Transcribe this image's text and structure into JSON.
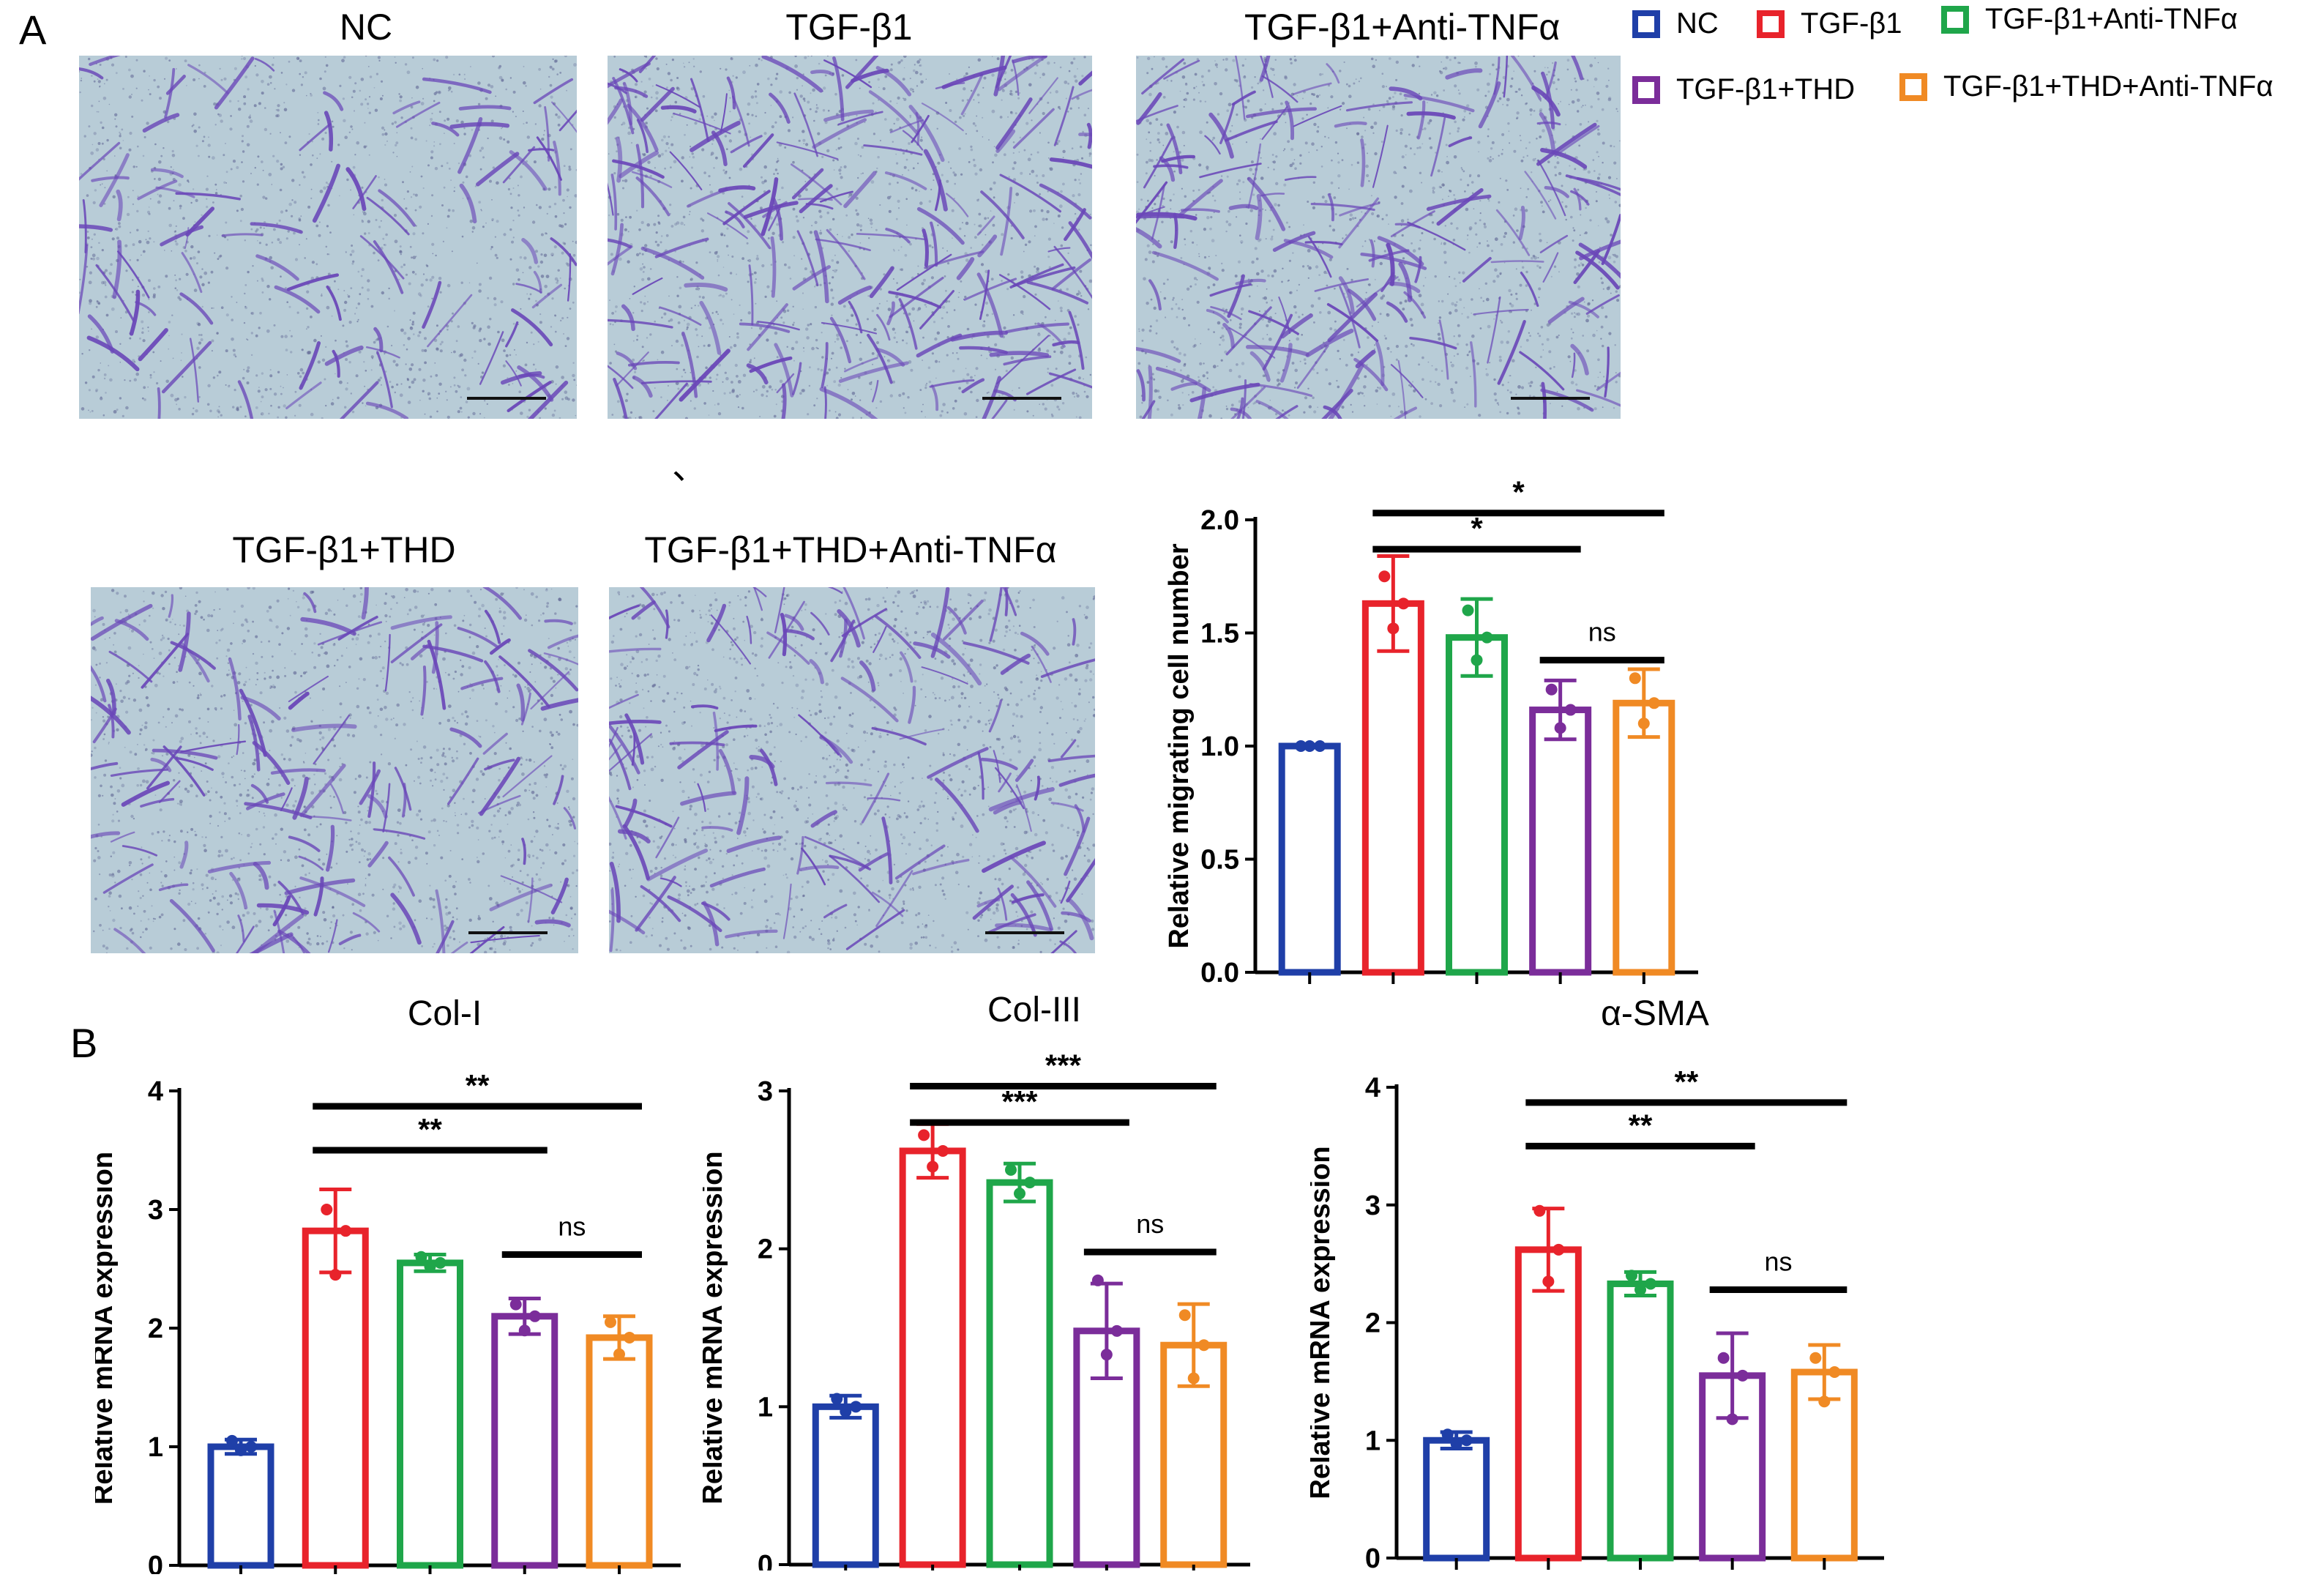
{
  "panel_labels": {
    "a": "A",
    "b": "B"
  },
  "stray_mark": "、",
  "images": [
    {
      "title": "NC",
      "density": 0.8,
      "seed": 11
    },
    {
      "title": "TGF-β1",
      "density": 1.6,
      "seed": 23
    },
    {
      "title": "TGF-β1+Anti-TNFα",
      "density": 1.45,
      "seed": 37
    },
    {
      "title": "TGF-β1+THD",
      "density": 1.1,
      "seed": 41
    },
    {
      "title": "TGF-β1+THD+Anti-TNFα",
      "density": 1.2,
      "seed": 53
    }
  ],
  "legend": [
    {
      "label": "NC",
      "color": "#1f3fa8"
    },
    {
      "label": "TGF-β1",
      "color": "#e8232b"
    },
    {
      "label": "TGF-β1+Anti-TNFα",
      "color": "#1fa64a"
    },
    {
      "label": "TGF-β1+THD",
      "color": "#7b2d9a"
    },
    {
      "label": "TGF-β1+THD+Anti-TNFα",
      "color": "#f08a24"
    }
  ],
  "chart_data": [
    {
      "id": "migration",
      "type": "bar",
      "title": "",
      "ylabel": "Relative migrating cell number",
      "ylim": [
        0,
        2.0
      ],
      "yticks": [
        "0.0",
        "0.5",
        "1.0",
        "1.5",
        "2.0"
      ],
      "categories": [
        "NC",
        "TGF-β1",
        "TGF-β1+Anti-TNFα",
        "TGF-β1+THD",
        "TGF-β1+THD+Anti-TNFα"
      ],
      "values": [
        1.0,
        1.63,
        1.48,
        1.16,
        1.19
      ],
      "errors": [
        0.0,
        0.21,
        0.17,
        0.13,
        0.15
      ],
      "points": [
        [
          1.0,
          1.0,
          1.0
        ],
        [
          1.75,
          1.63,
          1.52
        ],
        [
          1.6,
          1.48,
          1.38
        ],
        [
          1.25,
          1.16,
          1.08
        ],
        [
          1.3,
          1.19,
          1.1
        ]
      ],
      "significance": [
        {
          "from": 1,
          "to": 3,
          "label": "*",
          "y": 1.87
        },
        {
          "from": 1,
          "to": 4,
          "label": "*",
          "y": 2.03
        },
        {
          "from": 3,
          "to": 4,
          "label": "ns",
          "y": 1.38
        }
      ]
    },
    {
      "id": "col1",
      "type": "bar",
      "title": "Col-I",
      "ylabel": "Relative mRNA expression",
      "ylim": [
        0,
        4
      ],
      "yticks": [
        "0",
        "1",
        "2",
        "3",
        "4"
      ],
      "categories": [
        "NC",
        "TGF-β1",
        "TGF-β1+Anti-TNFα",
        "TGF-β1+THD",
        "TGF-β1+THD+Anti-TNFα"
      ],
      "values": [
        1.0,
        2.82,
        2.55,
        2.1,
        1.92
      ],
      "errors": [
        0.06,
        0.35,
        0.07,
        0.15,
        0.18
      ],
      "points": [
        [
          1.05,
          1.0,
          0.97
        ],
        [
          3.0,
          2.82,
          2.45
        ],
        [
          2.6,
          2.55,
          2.52
        ],
        [
          2.2,
          2.1,
          1.98
        ],
        [
          2.05,
          1.92,
          1.78
        ]
      ],
      "significance": [
        {
          "from": 1,
          "to": 3,
          "label": "**",
          "y": 3.5
        },
        {
          "from": 1,
          "to": 4,
          "label": "**",
          "y": 3.87
        },
        {
          "from": 3,
          "to": 4,
          "label": "ns",
          "y": 2.62
        }
      ]
    },
    {
      "id": "col3",
      "type": "bar",
      "title": "Col-III",
      "ylabel": "Relative mRNA expression",
      "ylim": [
        0,
        3
      ],
      "yticks": [
        "0",
        "1",
        "2",
        "3"
      ],
      "categories": [
        "NC",
        "TGF-β1",
        "TGF-β1+Anti-TNFα",
        "TGF-β1+THD",
        "TGF-β1+THD+Anti-TNFα"
      ],
      "values": [
        1.0,
        2.62,
        2.42,
        1.48,
        1.39
      ],
      "errors": [
        0.07,
        0.17,
        0.12,
        0.3,
        0.26
      ],
      "points": [
        [
          1.05,
          1.0,
          0.97
        ],
        [
          2.72,
          2.62,
          2.52
        ],
        [
          2.5,
          2.42,
          2.35
        ],
        [
          1.8,
          1.48,
          1.33
        ],
        [
          1.58,
          1.39,
          1.18
        ]
      ],
      "significance": [
        {
          "from": 1,
          "to": 3,
          "label": "***",
          "y": 2.8
        },
        {
          "from": 1,
          "to": 4,
          "label": "***",
          "y": 3.03
        },
        {
          "from": 3,
          "to": 4,
          "label": "ns",
          "y": 1.98
        }
      ]
    },
    {
      "id": "asma",
      "type": "bar",
      "title": "α-SMA",
      "ylabel": "Relative mRNA expression",
      "ylim": [
        0,
        4
      ],
      "yticks": [
        "0",
        "1",
        "2",
        "3",
        "4"
      ],
      "categories": [
        "NC",
        "TGF-β1",
        "TGF-β1+Anti-TNFα",
        "TGF-β1+THD",
        "TGF-β1+THD+Anti-TNFα"
      ],
      "values": [
        1.0,
        2.62,
        2.33,
        1.55,
        1.58
      ],
      "errors": [
        0.07,
        0.35,
        0.1,
        0.36,
        0.23
      ],
      "points": [
        [
          1.05,
          1.0,
          0.97
        ],
        [
          2.95,
          2.62,
          2.35
        ],
        [
          2.4,
          2.33,
          2.28
        ],
        [
          1.7,
          1.55,
          1.18
        ],
        [
          1.7,
          1.58,
          1.33
        ]
      ],
      "significance": [
        {
          "from": 1,
          "to": 3,
          "label": "**",
          "y": 3.5
        },
        {
          "from": 1,
          "to": 4,
          "label": "**",
          "y": 3.87
        },
        {
          "from": 3,
          "to": 4,
          "label": "ns",
          "y": 2.28
        }
      ]
    }
  ]
}
